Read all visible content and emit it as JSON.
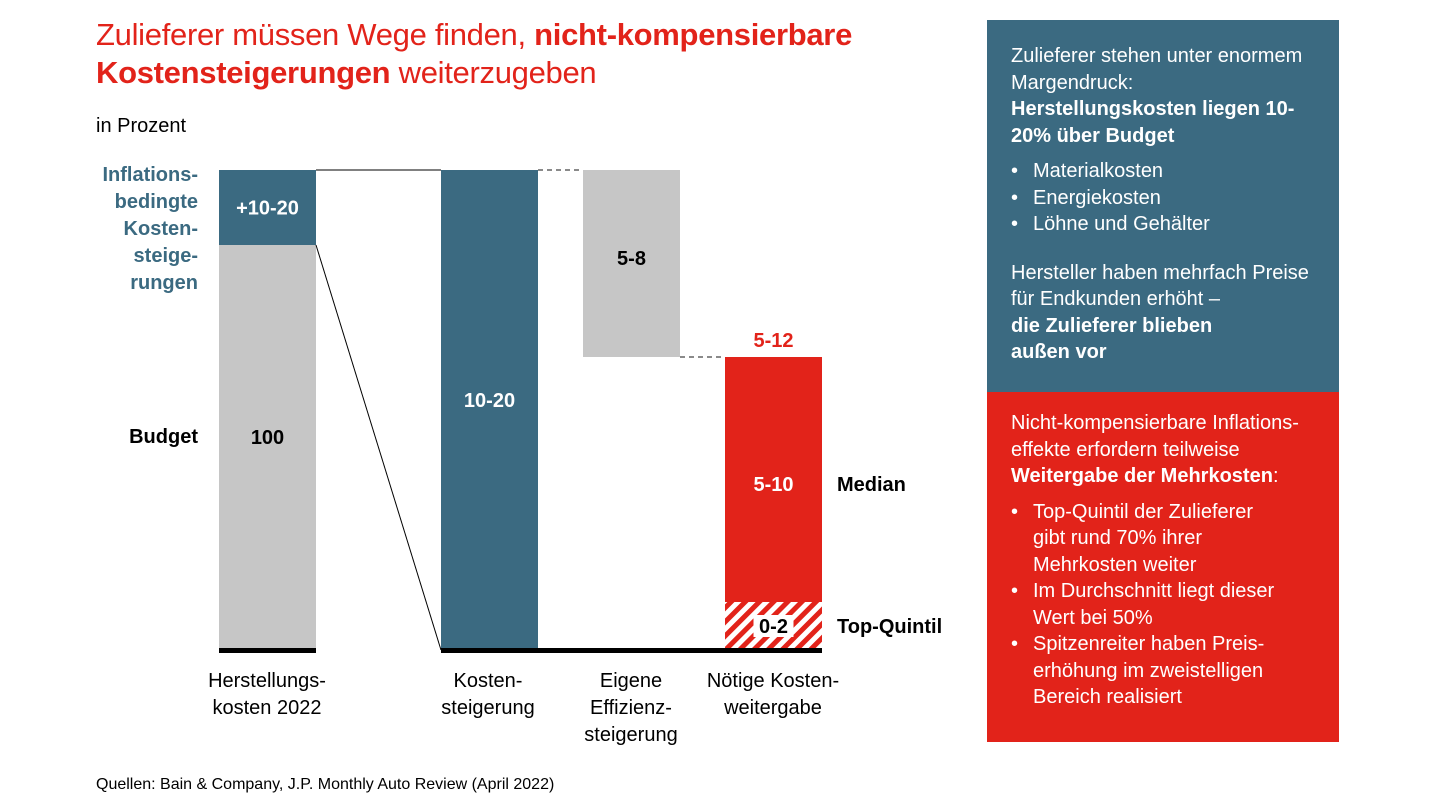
{
  "title": {
    "part1": "Zulieferer müssen Wege finden, ",
    "part1_bold": "nicht-kompensierbare",
    "part2_bold": "Kostensteigerungen",
    "part2": " weiterzugeben"
  },
  "unit_label": "in Prozent",
  "side_labels": {
    "inflation": [
      "Inflations-",
      "bedingte",
      "Kosten-",
      "steige-",
      "rungen"
    ],
    "budget": "Budget"
  },
  "chart_data": {
    "type": "waterfall",
    "title": "Zulieferer müssen Wege finden, nicht-kompensierbare Kostensteigerungen weiterzugeben",
    "ylabel": "in Prozent",
    "categories": [
      "Herstellungs- kosten 2022",
      "Kosten- steigerung",
      "Eigene Effizienz- steigerung",
      "Nötige Kosten- weitergabe"
    ],
    "category_lines": [
      [
        "Herstellungs-",
        "kosten 2022"
      ],
      [
        "Kosten-",
        "steigerung"
      ],
      [
        "Eigene",
        "Effizienz-",
        "steigerung"
      ],
      [
        "Nötige Kosten-",
        "weitergabe"
      ]
    ],
    "bars": [
      {
        "category": "Herstellungs- kosten 2022",
        "segments": [
          {
            "name": "Budget",
            "label": "100",
            "value": 100,
            "color": "#c6c6c6"
          },
          {
            "name": "Inflationsbedingte Kostensteigerungen",
            "label": "+10-20",
            "value_range": [
              10,
              20
            ],
            "color": "#3b6a81"
          }
        ]
      },
      {
        "category": "Kosten- steigerung",
        "segments": [
          {
            "name": "Kostensteigerung",
            "label": "10-20",
            "value_range": [
              10,
              20
            ],
            "color": "#3b6a81"
          }
        ]
      },
      {
        "category": "Eigene Effizienz- steigerung",
        "segments": [
          {
            "name": "Effizienzsteigerung",
            "label": "5-8",
            "value_range": [
              -8,
              -5
            ],
            "color": "#c6c6c6"
          }
        ]
      },
      {
        "category": "Nötige Kosten- weitergabe",
        "total_label": "5-12",
        "segments": [
          {
            "name": "Top-Quintil",
            "label": "0-2",
            "value_range": [
              0,
              2
            ],
            "color": "#e2231a",
            "pattern": "hatched"
          },
          {
            "name": "Median",
            "label": "5-10",
            "value_range": [
              5,
              10
            ],
            "color": "#e2231a"
          }
        ]
      }
    ],
    "annotations": [
      "Median",
      "Top-Quintil"
    ],
    "colors": {
      "blue": "#3b6a81",
      "grey": "#c6c6c6",
      "red": "#e2231a"
    }
  },
  "panel_blue": {
    "intro": "Zulieferer stehen unter enormem Margendruck:",
    "intro_bold": "Herstellungskosten liegen 10-20% über Budget",
    "bullets": [
      "Materialkosten",
      "Energiekosten",
      "Löhne und Gehälter"
    ],
    "para2": "Hersteller haben mehrfach Preise für Endkunden erhöht –",
    "para2_bold": "die Zulieferer blieben außen vor"
  },
  "panel_red": {
    "intro": "Nicht-kompensierbare Inflations-effekte erfordern teilweise",
    "intro_bold": "Weitergabe der Mehrkosten",
    "intro_end": ":",
    "bullets": [
      "Top-Quintil der Zulieferer gibt rund 70% ihrer Mehrkosten weiter",
      "Im Durchschnitt liegt dieser Wert bei 50%",
      "Spitzenreiter haben Preis-erhöhung im zweistelligen Bereich realisiert"
    ]
  },
  "source": "Quellen: Bain & Company, J.P. Monthly Auto Review (April 2022)"
}
